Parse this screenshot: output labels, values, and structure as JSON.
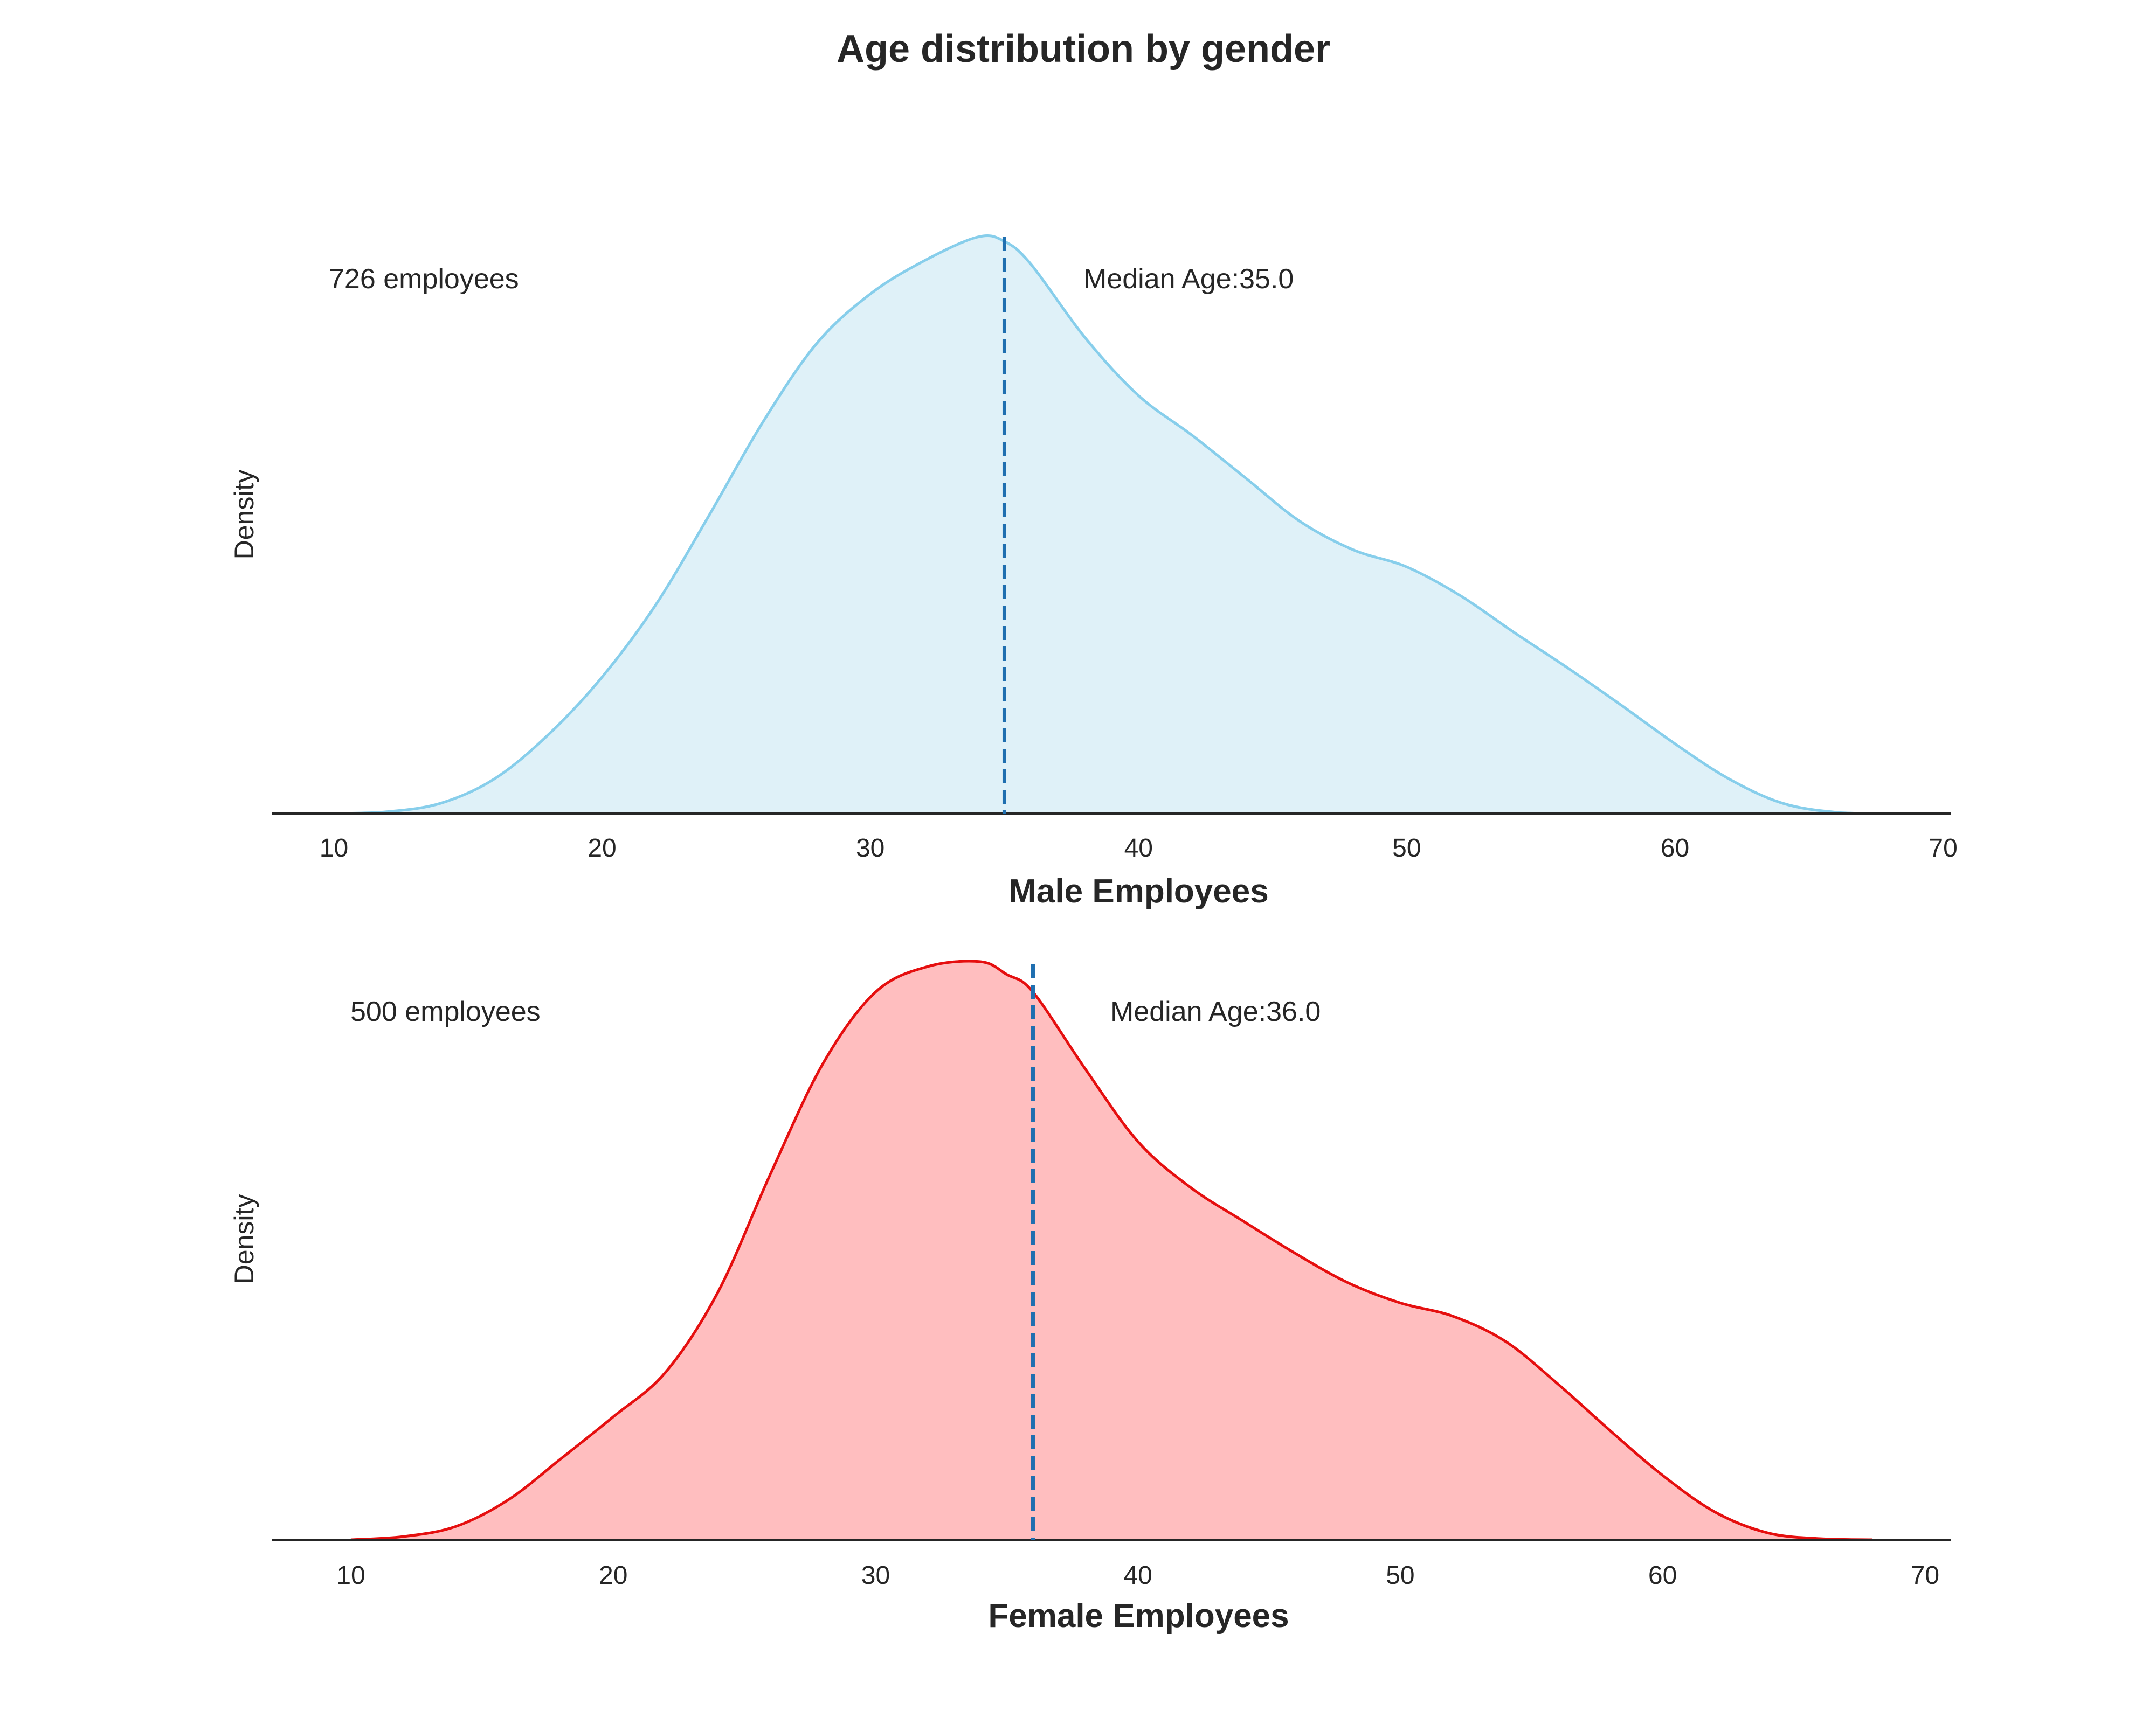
{
  "chart_data": {
    "type": "area",
    "title": "Age distribution by gender",
    "panels": [
      {
        "id": "male",
        "xlabel": "Male Employees",
        "ylabel": "Density",
        "count_label": "726 employees",
        "median_label": "Median Age:35.0",
        "median": 35.0,
        "xlim": [
          7.7,
          70.3
        ],
        "xticks": [
          "10",
          "20",
          "30",
          "40",
          "50",
          "60",
          "70"
        ],
        "line_color": "#87CEEB",
        "fill_color": "#DFF1F8",
        "median_color": "#1F6FB0",
        "x": [
          10,
          12,
          14,
          16,
          18,
          20,
          22,
          24,
          26,
          28,
          30,
          32,
          34,
          35,
          36,
          38,
          40,
          42,
          44,
          46,
          48,
          50,
          52,
          54,
          56,
          58,
          60,
          62,
          64,
          66,
          68
        ],
        "y": [
          0.0,
          0.0003,
          0.0017,
          0.0057,
          0.0129,
          0.0223,
          0.0341,
          0.0488,
          0.064,
          0.0768,
          0.0849,
          0.0903,
          0.0942,
          0.0935,
          0.0897,
          0.0778,
          0.0683,
          0.0618,
          0.0548,
          0.0478,
          0.0431,
          0.0403,
          0.0356,
          0.0296,
          0.0238,
          0.0177,
          0.0114,
          0.0057,
          0.0017,
          0.0002,
          0.0
        ]
      },
      {
        "id": "female",
        "xlabel": "Female Employees",
        "ylabel": "Density",
        "count_label": "500 employees",
        "median_label": "Median Age:36.0",
        "median": 36.0,
        "xlim": [
          7.0,
          71.0
        ],
        "xticks": [
          "10",
          "20",
          "30",
          "40",
          "50",
          "60",
          "70"
        ],
        "line_color": "#E50F0F",
        "fill_color": "#FFBEBF",
        "median_color": "#1F6FB0",
        "x": [
          10,
          12,
          14,
          16,
          18,
          20,
          22,
          24,
          26,
          28,
          30,
          32,
          34,
          35,
          36,
          38,
          40,
          42,
          44,
          46,
          48,
          50,
          52,
          54,
          56,
          58,
          60,
          62,
          64,
          66,
          68
        ],
        "y": [
          0.0,
          0.0006,
          0.0025,
          0.0075,
          0.0152,
          0.0231,
          0.0315,
          0.0466,
          0.0688,
          0.0895,
          0.1029,
          0.1077,
          0.1086,
          0.1062,
          0.1029,
          0.0884,
          0.0748,
          0.0662,
          0.0599,
          0.0538,
          0.0483,
          0.0445,
          0.042,
          0.0373,
          0.0293,
          0.0205,
          0.0121,
          0.0052,
          0.0013,
          0.0002,
          0.0
        ]
      }
    ]
  }
}
